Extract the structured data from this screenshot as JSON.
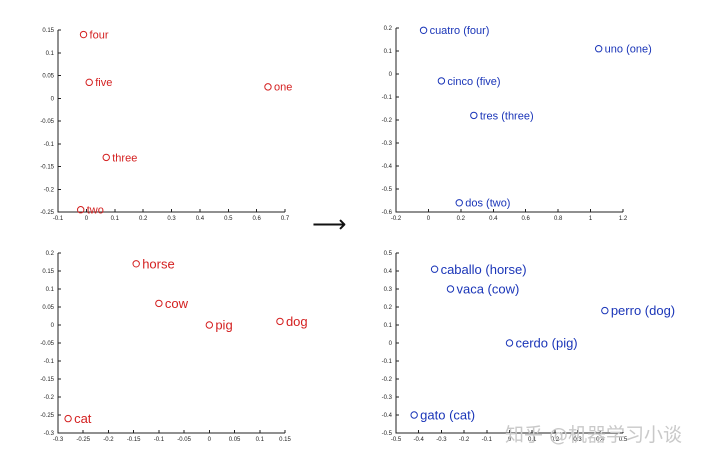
{
  "arrow": "⟶",
  "watermark": "知乎 @机器学习小谈",
  "chart_data": [
    {
      "type": "scatter",
      "color": "#d42020",
      "xlim": [
        -0.1,
        0.7
      ],
      "ylim": [
        -0.25,
        0.15
      ],
      "xticks": [
        "-0.1",
        "0",
        "0.1",
        "0.2",
        "0.3",
        "0.4",
        "0.5",
        "0.6",
        "0.7"
      ],
      "yticks": [
        "0.15",
        "0.1",
        "0.05",
        "0",
        "-0.05",
        "-0.1",
        "-0.15",
        "-0.2",
        "-0.25"
      ],
      "points": [
        {
          "label": "four",
          "x": -0.01,
          "y": 0.14
        },
        {
          "label": "five",
          "x": 0.01,
          "y": 0.035
        },
        {
          "label": "one",
          "x": 0.64,
          "y": 0.025
        },
        {
          "label": "three",
          "x": 0.07,
          "y": -0.13
        },
        {
          "label": "two",
          "x": -0.02,
          "y": -0.245
        }
      ]
    },
    {
      "type": "scatter",
      "color": "#1a35b8",
      "xlim": [
        -0.2,
        1.2
      ],
      "ylim": [
        -0.6,
        0.2
      ],
      "xticks": [
        "-0.2",
        "0",
        "0.2",
        "0.4",
        "0.6",
        "0.8",
        "1",
        "1.2"
      ],
      "yticks": [
        "0.2",
        "0.1",
        "0",
        "-0.1",
        "-0.2",
        "-0.3",
        "-0.4",
        "-0.5",
        "-0.6"
      ],
      "points": [
        {
          "label": "cuatro (four)",
          "x": -0.03,
          "y": 0.19
        },
        {
          "label": "uno (one)",
          "x": 1.05,
          "y": 0.11
        },
        {
          "label": "cinco (five)",
          "x": 0.08,
          "y": -0.03
        },
        {
          "label": "tres (three)",
          "x": 0.28,
          "y": -0.18
        },
        {
          "label": "dos (two)",
          "x": 0.19,
          "y": -0.56
        }
      ]
    },
    {
      "type": "scatter",
      "color": "#d42020",
      "xlim": [
        -0.3,
        0.15
      ],
      "ylim": [
        -0.3,
        0.2
      ],
      "xticks": [
        "-0.3",
        "-0.25",
        "-0.2",
        "-0.15",
        "-0.1",
        "-0.05",
        "0",
        "0.05",
        "0.1",
        "0.15"
      ],
      "yticks": [
        "0.2",
        "0.15",
        "0.1",
        "0.05",
        "0",
        "-0.05",
        "-0.1",
        "-0.15",
        "-0.2",
        "-0.25",
        "-0.3"
      ],
      "points": [
        {
          "label": "horse",
          "x": -0.145,
          "y": 0.17
        },
        {
          "label": "cow",
          "x": -0.1,
          "y": 0.06
        },
        {
          "label": "pig",
          "x": 0.0,
          "y": 0.0
        },
        {
          "label": "dog",
          "x": 0.14,
          "y": 0.01
        },
        {
          "label": "cat",
          "x": -0.28,
          "y": -0.26
        }
      ]
    },
    {
      "type": "scatter",
      "color": "#1a35b8",
      "xlim": [
        -0.5,
        0.5
      ],
      "ylim": [
        -0.5,
        0.5
      ],
      "xticks": [
        "-0.5",
        "-0.4",
        "-0.3",
        "-0.2",
        "-0.1",
        "0",
        "0.1",
        "0.2",
        "0.3",
        "0.4",
        "0.5"
      ],
      "yticks": [
        "0.5",
        "0.4",
        "0.3",
        "0.2",
        "0.1",
        "0",
        "-0.1",
        "-0.2",
        "-0.3",
        "-0.4",
        "-0.5"
      ],
      "points": [
        {
          "label": "caballo (horse)",
          "x": -0.33,
          "y": 0.41
        },
        {
          "label": "vaca (cow)",
          "x": -0.26,
          "y": 0.3
        },
        {
          "label": "perro (dog)",
          "x": 0.42,
          "y": 0.18
        },
        {
          "label": "cerdo (pig)",
          "x": 0.0,
          "y": 0.0
        },
        {
          "label": "gato (cat)",
          "x": -0.42,
          "y": -0.4
        }
      ]
    }
  ]
}
